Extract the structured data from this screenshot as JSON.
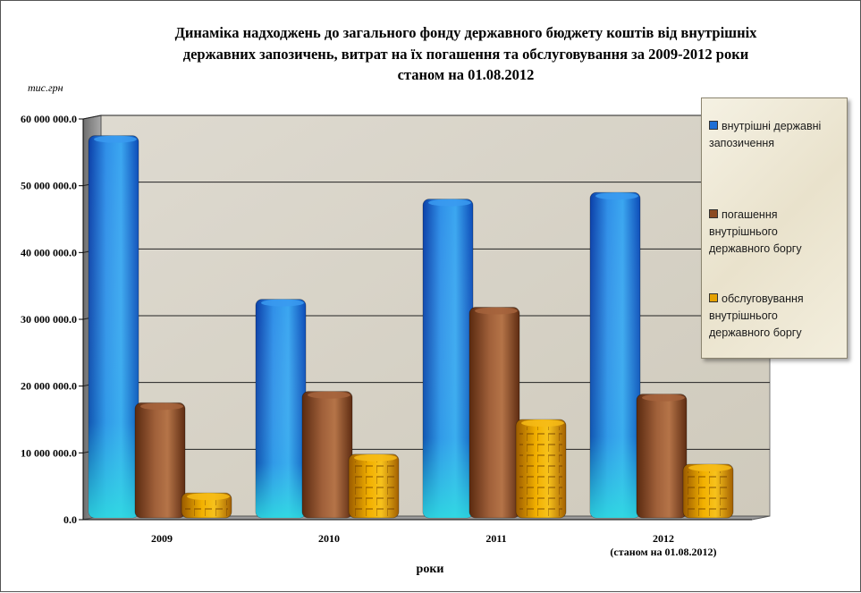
{
  "chart_data": {
    "type": "bar",
    "title_lines": [
      "Динаміка надходжень до загального фонду державного бюджету коштів від внутрішніх",
      "державних запозичень, витрат на їх погашення та обслуговування за 2009-2012 роки",
      "станом на 01.08.2012"
    ],
    "unit_label": "тис.грн",
    "xlabel": "роки",
    "categories": [
      [
        "2009"
      ],
      [
        "2010"
      ],
      [
        "2011"
      ],
      [
        "2012",
        "(станом на 01.08.2012)"
      ]
    ],
    "ylim": [
      0,
      60000000
    ],
    "yticks": [
      {
        "value": 0,
        "label": "0.0"
      },
      {
        "value": 10000000,
        "label": "10 000 000.0"
      },
      {
        "value": 20000000,
        "label": "20 000 000.0"
      },
      {
        "value": 30000000,
        "label": "30 000 000.0"
      },
      {
        "value": 40000000,
        "label": "40 000 000.0"
      },
      {
        "value": 50000000,
        "label": "50 000 000.0"
      },
      {
        "value": 60000000,
        "label": "60 000 000.0"
      }
    ],
    "grid": true,
    "legend_position": "right",
    "series": [
      {
        "name": "внутрішні державні запозичення",
        "legend_lines": [
          "внутрішні державні",
          "запозичення"
        ],
        "color": "#1e6fd6",
        "values": [
          57500000,
          33000000,
          48000000,
          49000000
        ]
      },
      {
        "name": "погашення внутрішнього державного боргу",
        "legend_lines": [
          "погашення",
          "внутрішнього",
          "державного боргу"
        ],
        "color": "#8b4a22",
        "values": [
          17500000,
          19200000,
          31800000,
          18800000
        ]
      },
      {
        "name": "обслуговування внутрішнього державного боргу",
        "legend_lines": [
          "обслуговування",
          "внутрішнього",
          "державного боргу"
        ],
        "color": "#e5a100",
        "values": [
          4000000,
          9800000,
          15000000,
          8300000
        ]
      }
    ]
  }
}
